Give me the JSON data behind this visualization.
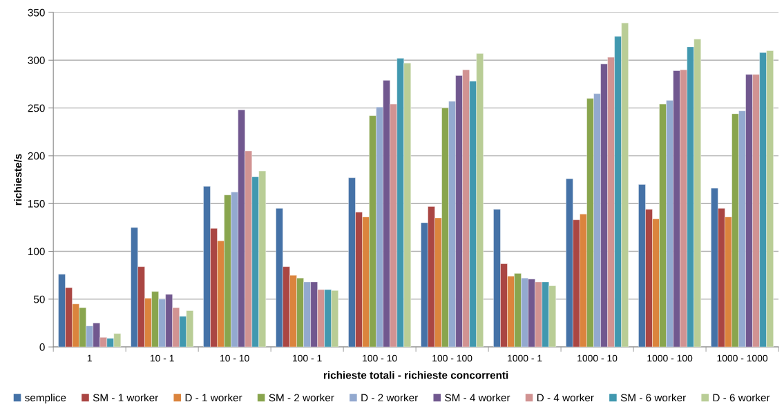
{
  "chart_data": {
    "type": "bar",
    "xlabel": "richieste totali - richieste concorrenti",
    "ylabel": "richieste/s",
    "categories": [
      "1",
      "10 - 1",
      "10 - 10",
      "100 - 1",
      "100 - 10",
      "100 - 100",
      "1000 - 1",
      "1000 - 10",
      "1000 - 100",
      "1000 - 1000"
    ],
    "series": [
      {
        "name": "semplice",
        "color": "#4572a7",
        "values": [
          76,
          125,
          168,
          145,
          177,
          130,
          144,
          176,
          170,
          166
        ]
      },
      {
        "name": "SM - 1 worker",
        "color": "#aa4643",
        "values": [
          62,
          84,
          124,
          84,
          141,
          147,
          87,
          133,
          144,
          145
        ]
      },
      {
        "name": "D - 1 worker",
        "color": "#db843d",
        "values": [
          45,
          51,
          111,
          75,
          136,
          135,
          74,
          139,
          134,
          136
        ]
      },
      {
        "name": "SM - 2 worker",
        "color": "#89a54e",
        "values": [
          41,
          58,
          159,
          72,
          242,
          250,
          77,
          260,
          254,
          244
        ]
      },
      {
        "name": "D - 2 worker",
        "color": "#93a9cf",
        "values": [
          22,
          50,
          162,
          68,
          251,
          257,
          72,
          265,
          258,
          247
        ]
      },
      {
        "name": "SM - 4 worker",
        "color": "#71588f",
        "values": [
          25,
          55,
          248,
          68,
          279,
          284,
          71,
          296,
          289,
          285
        ]
      },
      {
        "name": "D - 4 worker",
        "color": "#d19392",
        "values": [
          10,
          41,
          205,
          60,
          254,
          290,
          68,
          303,
          290,
          285
        ]
      },
      {
        "name": "SM - 6 worker",
        "color": "#4198af",
        "values": [
          9,
          32,
          178,
          60,
          302,
          278,
          68,
          325,
          314,
          308
        ]
      },
      {
        "name": "D - 6 worker",
        "color": "#b9cd96",
        "values": [
          14,
          38,
          184,
          59,
          297,
          307,
          64,
          339,
          322,
          310
        ]
      }
    ],
    "ylim": [
      0,
      350
    ],
    "yticks": [
      0,
      50,
      100,
      150,
      200,
      250,
      300,
      350
    ],
    "grid": "y",
    "legend": "bottom"
  }
}
